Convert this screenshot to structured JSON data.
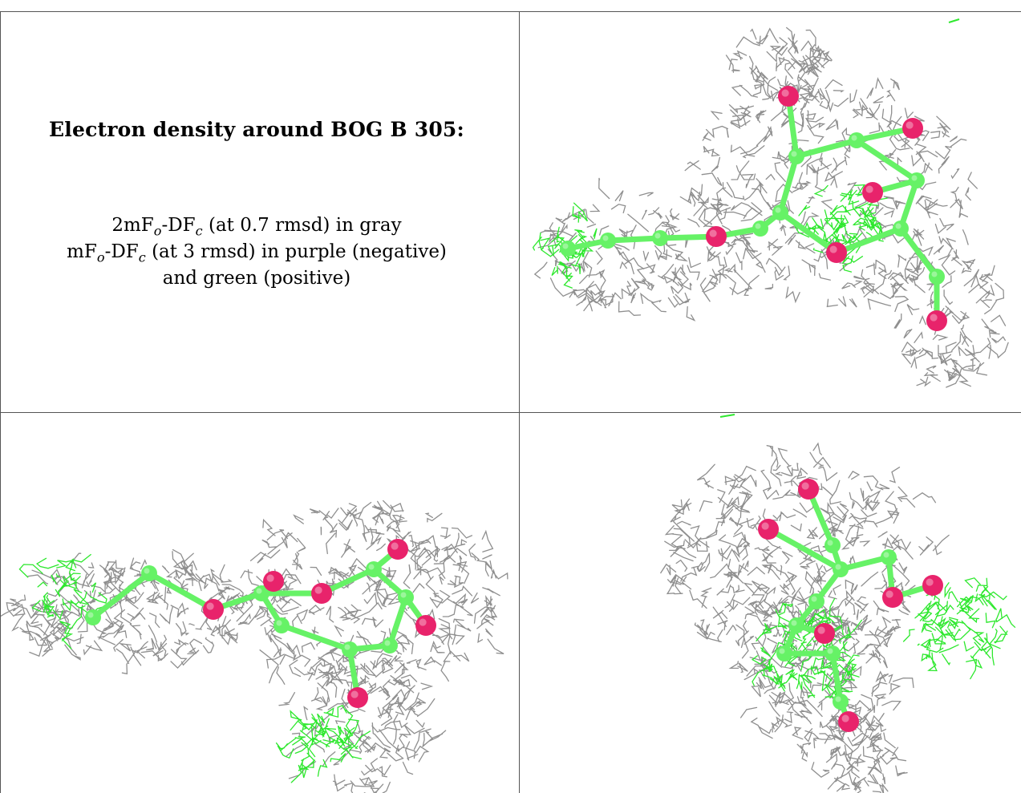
{
  "title": "Electron density around BOG B 305:",
  "caption": {
    "line1": {
      "pre": "2mF",
      "sub1": "o",
      "mid": "-DF",
      "sub2": "c",
      "post": " (at 0.7 rmsd) in gray"
    },
    "line2": {
      "pre": "mF",
      "sub1": "o",
      "mid": "-DF",
      "sub2": "c",
      "post": " (at 3 rmsd) in purple (negative)"
    },
    "line3": "and green (positive)"
  },
  "colors": {
    "mesh_gray": "#8f8f8f",
    "mesh_green": "#2ee82e",
    "carbon_green": "#66f266",
    "oxygen_pink": "#e8236b",
    "border": "#555555"
  },
  "panels": [
    {
      "view": "top-right",
      "depiction": "molecule-view"
    },
    {
      "view": "bottom-left",
      "depiction": "molecule-view"
    },
    {
      "view": "bottom-right",
      "depiction": "molecule-view"
    }
  ]
}
